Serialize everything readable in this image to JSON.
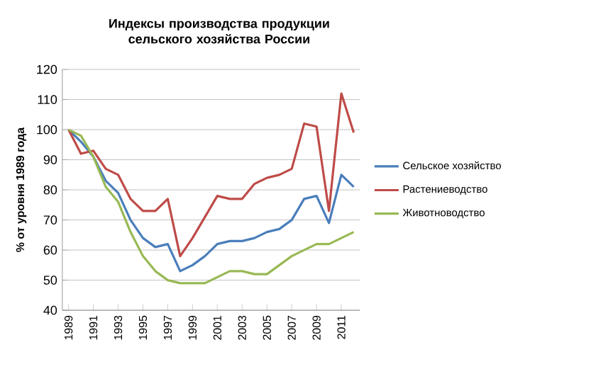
{
  "chart_data": {
    "type": "line",
    "title": "Индексы производства продукции сельского хозяйства России",
    "ylabel": "% от уровня  1989 года",
    "categories": [
      "1989",
      null,
      "1991",
      null,
      "1993",
      null,
      "1995",
      null,
      "1997",
      null,
      "1999",
      null,
      "2001",
      null,
      "2003",
      null,
      "2005",
      null,
      "2007",
      null,
      "2009",
      null,
      "2011",
      null
    ],
    "series": [
      {
        "name": "Сельское хозяйство",
        "color": "#4a7ebb",
        "values": [
          100,
          96,
          91,
          83,
          79,
          70,
          64,
          61,
          62,
          53,
          55,
          58,
          62,
          63,
          63,
          64,
          66,
          67,
          70,
          77,
          78,
          69,
          85,
          81
        ]
      },
      {
        "name": "Растениеводство",
        "color": "#be4b48",
        "values": [
          100,
          92,
          93,
          87,
          85,
          77,
          73,
          73,
          77,
          58,
          64,
          71,
          78,
          77,
          77,
          82,
          84,
          85,
          87,
          102,
          101,
          73,
          112,
          99
        ]
      },
      {
        "name": "Животноводство",
        "color": "#98b954",
        "values": [
          100,
          98,
          91,
          81,
          76,
          66,
          58,
          53,
          50,
          49,
          49,
          49,
          51,
          53,
          53,
          52,
          52,
          55,
          58,
          60,
          62,
          62,
          64,
          66
        ]
      }
    ],
    "ylim": [
      40,
      120
    ],
    "yticks": [
      40,
      50,
      60,
      70,
      80,
      90,
      100,
      110,
      120
    ],
    "grid": "y",
    "legend": "right",
    "line_style": "solid",
    "marker": "none"
  }
}
